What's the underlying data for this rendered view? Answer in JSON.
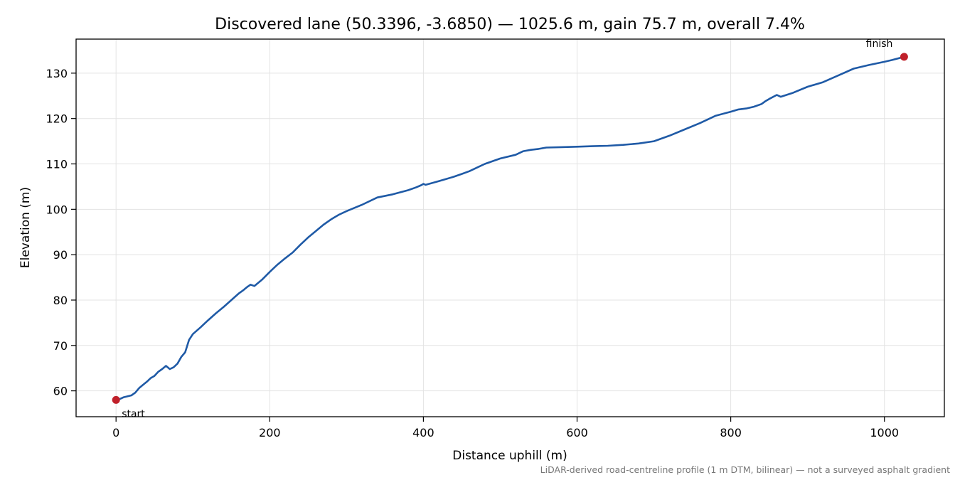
{
  "chart_data": {
    "type": "line",
    "title": "Discovered lane (50.3396, -3.6850) — 1025.6 m, gain 75.7 m, overall 7.4%",
    "xlabel": "Distance uphill (m)",
    "ylabel": "Elevation (m)",
    "xlim": [
      -52,
      1078
    ],
    "ylim": [
      54.3,
      137.5
    ],
    "xticks": [
      0,
      200,
      400,
      600,
      800,
      1000
    ],
    "yticks": [
      60,
      70,
      80,
      90,
      100,
      110,
      120,
      130
    ],
    "grid": true,
    "series": [
      {
        "color": "#1f5aa6",
        "x": [
          0,
          5,
          10,
          20,
          25,
          30,
          35,
          40,
          45,
          50,
          55,
          60,
          65,
          70,
          75,
          80,
          85,
          90,
          95,
          100,
          110,
          120,
          130,
          140,
          150,
          160,
          165,
          170,
          175,
          180,
          185,
          190,
          200,
          210,
          220,
          230,
          240,
          250,
          260,
          270,
          280,
          290,
          300,
          320,
          340,
          360,
          380,
          390,
          397,
          400,
          403,
          420,
          440,
          450,
          460,
          470,
          480,
          500,
          520,
          530,
          540,
          550,
          560,
          580,
          600,
          620,
          640,
          660,
          680,
          700,
          720,
          740,
          760,
          780,
          800,
          810,
          820,
          830,
          840,
          845,
          850,
          860,
          865,
          880,
          900,
          920,
          940,
          960,
          980,
          1000,
          1010,
          1025.6
        ],
        "values": [
          58.0,
          58.2,
          58.6,
          59.0,
          59.6,
          60.6,
          61.3,
          62.0,
          62.8,
          63.3,
          64.2,
          64.8,
          65.5,
          64.8,
          65.2,
          66.0,
          67.5,
          68.5,
          71.2,
          72.5,
          74.0,
          75.6,
          77.1,
          78.5,
          80.0,
          81.5,
          82.1,
          82.8,
          83.4,
          83.1,
          83.8,
          84.5,
          86.2,
          87.8,
          89.2,
          90.5,
          92.2,
          93.8,
          95.2,
          96.6,
          97.8,
          98.8,
          99.6,
          101.0,
          102.6,
          103.3,
          104.2,
          104.8,
          105.3,
          105.6,
          105.4,
          106.2,
          107.2,
          107.8,
          108.4,
          109.2,
          110.0,
          111.2,
          112.0,
          112.8,
          113.1,
          113.3,
          113.6,
          113.7,
          113.8,
          113.9,
          114.0,
          114.2,
          114.5,
          115.0,
          116.2,
          117.6,
          119.0,
          120.6,
          121.5,
          122.0,
          122.2,
          122.6,
          123.2,
          123.8,
          124.3,
          125.2,
          124.8,
          125.6,
          127.0,
          128.0,
          129.5,
          131.0,
          131.8,
          132.5,
          132.9,
          133.6
        ]
      }
    ],
    "annotations": [
      {
        "label": "start",
        "x": 0,
        "y": 58.0
      },
      {
        "label": "finish",
        "x": 1025.6,
        "y": 133.6
      }
    ],
    "marker_color": "#c0202a",
    "footnote": "LiDAR-derived road-centreline profile (1 m DTM, bilinear) — not a surveyed asphalt gradient"
  }
}
